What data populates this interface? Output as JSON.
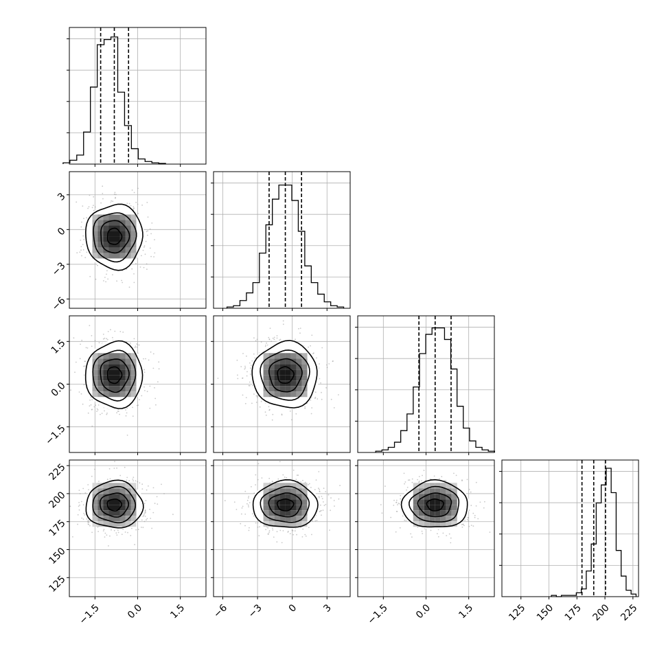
{
  "chart_data": {
    "type": "corner",
    "title": "",
    "parameters": [
      {
        "name": "",
        "range": [
          -2.4,
          2.4
        ],
        "ticks": [
          "−1.5",
          "0.0",
          "1.5"
        ],
        "tick_values": [
          -1.5,
          0.0,
          1.5
        ],
        "mean": -0.82,
        "sd": 0.5,
        "quantiles": [
          -1.3,
          -0.82,
          -0.32
        ]
      },
      {
        "name": "",
        "range": [
          -6.8,
          5.0
        ],
        "ticks": [
          "−6",
          "−3",
          "0",
          "3"
        ],
        "tick_values": [
          -6,
          -3,
          0,
          3
        ],
        "mean": -0.6,
        "sd": 1.4,
        "quantiles": [
          -2.0,
          -0.6,
          0.8
        ]
      },
      {
        "name": "",
        "range": [
          -2.4,
          2.4
        ],
        "ticks": [
          "−1.5",
          "0.0",
          "1.5"
        ],
        "tick_values": [
          -1.5,
          0.0,
          1.5
        ],
        "mean": 0.32,
        "sd": 0.58,
        "quantiles": [
          -0.25,
          0.32,
          0.88
        ]
      },
      {
        "name": "",
        "range": [
          108,
          230
        ],
        "ticks": [
          "125",
          "150",
          "175",
          "200",
          "225"
        ],
        "tick_values": [
          125,
          150,
          175,
          200,
          225
        ],
        "mean": 190,
        "sd": 10.5,
        "quantiles": [
          179.5,
          190,
          200.5
        ]
      }
    ],
    "histograms": [
      [
        0.01,
        0.03,
        0.07,
        0.25,
        0.6,
        0.93,
        0.97,
        0.99,
        0.56,
        0.3,
        0.12,
        0.04,
        0.02,
        0.01,
        0.005
      ],
      [
        0.01,
        0.02,
        0.06,
        0.12,
        0.2,
        0.43,
        0.65,
        0.85,
        0.96,
        0.96,
        0.84,
        0.6,
        0.33,
        0.2,
        0.11,
        0.05,
        0.02,
        0.01
      ],
      [
        0.01,
        0.02,
        0.04,
        0.08,
        0.17,
        0.3,
        0.51,
        0.77,
        0.92,
        0.97,
        0.97,
        0.88,
        0.65,
        0.36,
        0.19,
        0.09,
        0.04,
        0.02,
        0.01
      ],
      [
        0.01,
        0.0,
        0.01,
        0.01,
        0.01,
        0.03,
        0.06,
        0.2,
        0.41,
        0.73,
        0.87,
        1.0,
        0.81,
        0.36,
        0.16,
        0.05,
        0.02
      ]
    ],
    "contour_levels_sigma": [
      0.5,
      1.0,
      1.5,
      2.0
    ],
    "grid": true,
    "colors": {
      "line": "#000000",
      "grid": "#b0b0b0",
      "scatter": "#9a9a9a"
    }
  }
}
